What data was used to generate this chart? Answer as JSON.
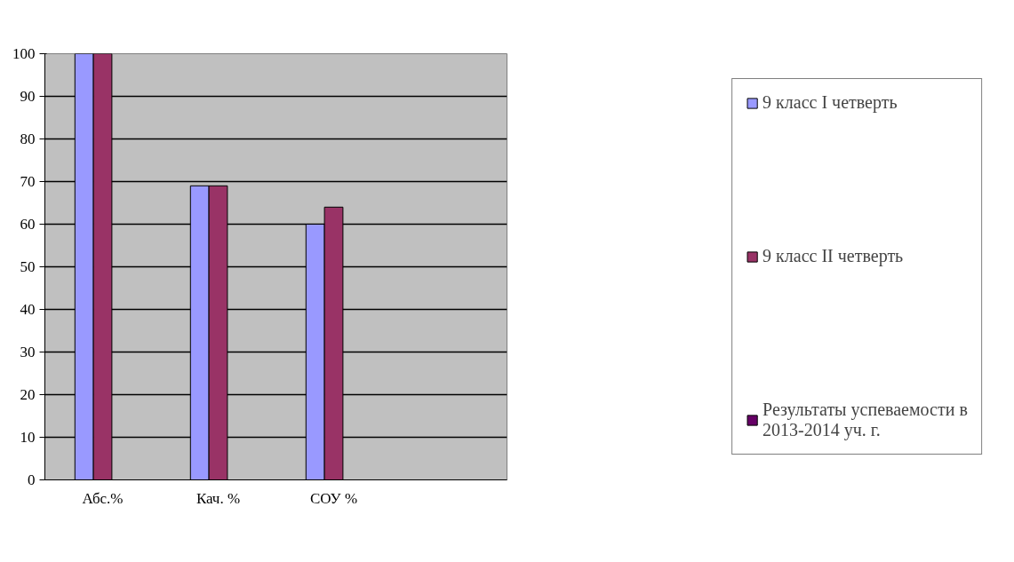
{
  "chart_data": {
    "type": "bar",
    "categories": [
      "Абс.%",
      "Кач. %",
      "СОУ %",
      null
    ],
    "series": [
      {
        "name": "9 класс I четверть",
        "color": "#9999ff",
        "values": [
          100,
          69,
          60,
          null
        ]
      },
      {
        "name": "9 класс II четверть",
        "color": "#993366",
        "values": [
          100,
          69,
          64,
          null
        ]
      },
      {
        "name": "Результаты успеваемости в 2013-2014 уч. г.",
        "color": "#660066",
        "values": [
          null,
          null,
          null,
          null
        ]
      }
    ],
    "ylim": [
      0,
      100
    ],
    "yticks": [
      0,
      10,
      20,
      30,
      40,
      50,
      60,
      70,
      80,
      90,
      100
    ],
    "grid": "y",
    "legend": "right"
  }
}
